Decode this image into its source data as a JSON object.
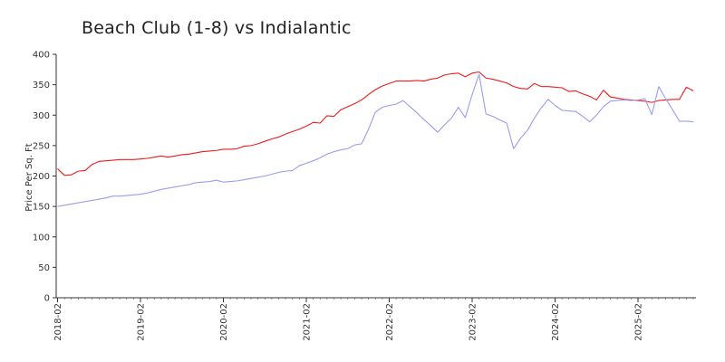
{
  "chart_data": {
    "type": "line",
    "title": "Beach Club (1-8) vs Indialantic",
    "xlabel": "",
    "ylabel": "Price Per Sq. Ft",
    "ylim": [
      0,
      400
    ],
    "yticks": [
      0,
      50,
      100,
      150,
      200,
      250,
      300,
      350,
      400
    ],
    "x_ticks": [
      "2018-02",
      "2019-02",
      "2020-02",
      "2021-02",
      "2022-02",
      "2023-02",
      "2024-02",
      "2025-02"
    ],
    "x": [
      "2018-02",
      "2018-03",
      "2018-04",
      "2018-05",
      "2018-06",
      "2018-07",
      "2018-08",
      "2018-09",
      "2018-10",
      "2018-11",
      "2018-12",
      "2019-01",
      "2019-02",
      "2019-03",
      "2019-04",
      "2019-05",
      "2019-06",
      "2019-07",
      "2019-08",
      "2019-09",
      "2019-10",
      "2019-11",
      "2019-12",
      "2020-01",
      "2020-02",
      "2020-03",
      "2020-04",
      "2020-05",
      "2020-06",
      "2020-07",
      "2020-08",
      "2020-09",
      "2020-10",
      "2020-11",
      "2020-12",
      "2021-01",
      "2021-02",
      "2021-03",
      "2021-04",
      "2021-05",
      "2021-06",
      "2021-07",
      "2021-08",
      "2021-09",
      "2021-10",
      "2021-11",
      "2021-12",
      "2022-01",
      "2022-02",
      "2022-03",
      "2022-04",
      "2022-05",
      "2022-06",
      "2022-07",
      "2022-08",
      "2022-09",
      "2022-10",
      "2022-11",
      "2022-12",
      "2023-01",
      "2023-02",
      "2023-03",
      "2023-04",
      "2023-05",
      "2023-06",
      "2023-07",
      "2023-08",
      "2023-09",
      "2023-10",
      "2023-11",
      "2023-12",
      "2024-01",
      "2024-02",
      "2024-03",
      "2024-04",
      "2024-05",
      "2024-06",
      "2024-07",
      "2024-08",
      "2024-09",
      "2024-10",
      "2024-11",
      "2024-12",
      "2025-01",
      "2025-02",
      "2025-03",
      "2025-04",
      "2025-05",
      "2025-06",
      "2025-07",
      "2025-08",
      "2025-09",
      "2025-10"
    ],
    "series": [
      {
        "color": "#ee1c1c",
        "values": [
          212,
          201,
          202,
          208,
          209,
          219,
          224,
          225,
          226,
          227,
          227,
          227,
          228,
          229,
          231,
          233,
          231,
          233,
          235,
          236,
          238,
          240,
          241,
          242,
          244,
          244,
          245,
          249,
          250,
          253,
          257,
          261,
          264,
          269,
          273,
          277,
          282,
          288,
          287,
          299,
          298,
          309,
          314,
          319,
          325,
          334,
          342,
          348,
          352,
          356,
          356,
          356,
          357,
          356,
          359,
          361,
          366,
          368,
          369,
          363,
          369,
          371,
          361,
          359,
          356,
          353,
          347,
          344,
          343,
          352,
          347,
          347,
          346,
          345,
          339,
          340,
          335,
          331,
          325,
          341,
          330,
          328,
          326,
          325,
          324,
          323,
          321,
          324,
          325,
          326,
          326,
          346,
          340
        ]
      },
      {
        "color": "#9a9cee",
        "values": [
          150,
          152,
          154,
          156,
          158,
          160,
          162,
          164,
          167,
          167,
          168,
          169,
          170,
          172,
          175,
          178,
          180,
          182,
          184,
          186,
          189,
          190,
          191,
          193,
          190,
          191,
          192,
          194,
          196,
          198,
          200,
          203,
          206,
          208,
          209,
          217,
          221,
          225,
          230,
          236,
          240,
          243,
          245,
          251,
          253,
          277,
          305,
          313,
          316,
          318,
          324,
          314,
          304,
          293,
          283,
          272,
          284,
          295,
          313,
          296,
          334,
          367,
          302,
          298,
          292,
          287,
          245,
          262,
          275,
          295,
          312,
          326,
          316,
          308,
          307,
          306,
          298,
          289,
          300,
          314,
          323,
          324,
          325,
          324,
          325,
          327,
          301,
          347,
          327,
          309,
          290,
          290,
          289
        ]
      }
    ]
  }
}
